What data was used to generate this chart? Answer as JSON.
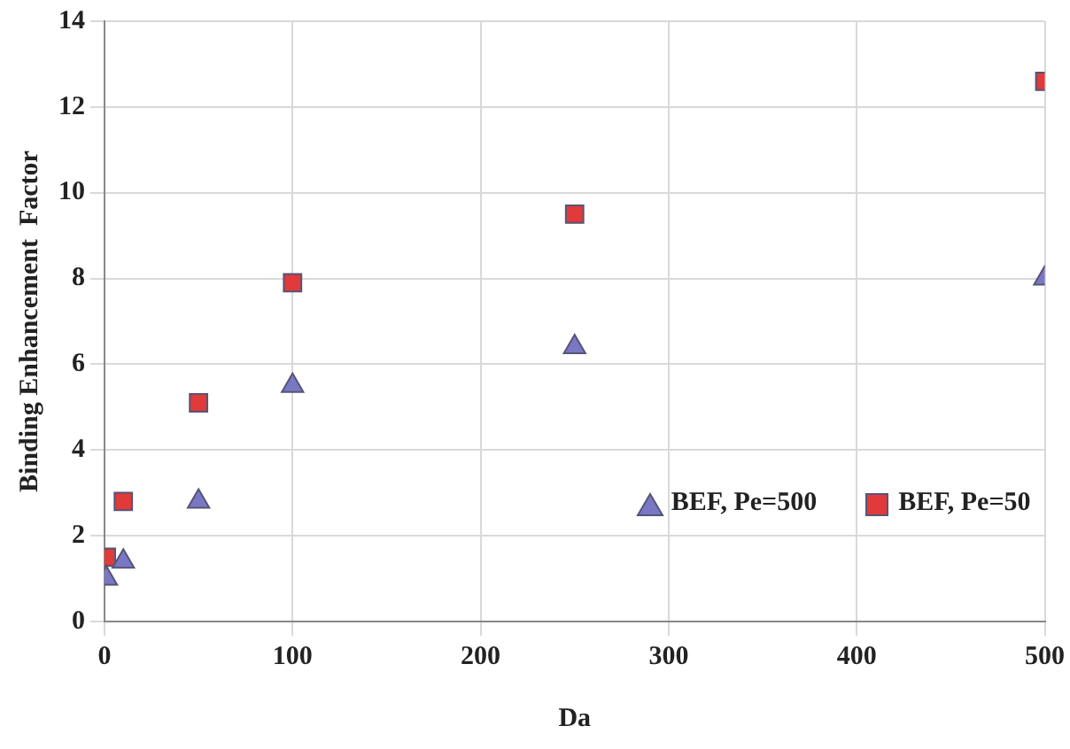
{
  "chart_data": {
    "type": "scatter",
    "xlabel": "Da",
    "ylabel": "Binding Enhancement  Factor",
    "x": [
      1,
      10,
      50,
      100,
      250,
      500
    ],
    "series": [
      {
        "name": "BEF, Pe=500",
        "color": "#7a78c4",
        "marker": "triangle",
        "values": [
          1.0,
          1.4,
          2.8,
          5.5,
          6.4,
          8.0
        ]
      },
      {
        "name": "BEF, Pe=50",
        "color": "#e03a3a",
        "marker": "square",
        "values": [
          1.5,
          2.8,
          5.1,
          7.9,
          9.5,
          12.6
        ]
      }
    ],
    "xlim": [
      0,
      500
    ],
    "xticks": [
      0,
      100,
      200,
      300,
      400,
      500
    ],
    "ylim": [
      0,
      14
    ],
    "yticks": [
      0,
      2,
      4,
      6,
      8,
      10,
      12,
      14
    ],
    "grid": true,
    "legend": "bottom right"
  }
}
